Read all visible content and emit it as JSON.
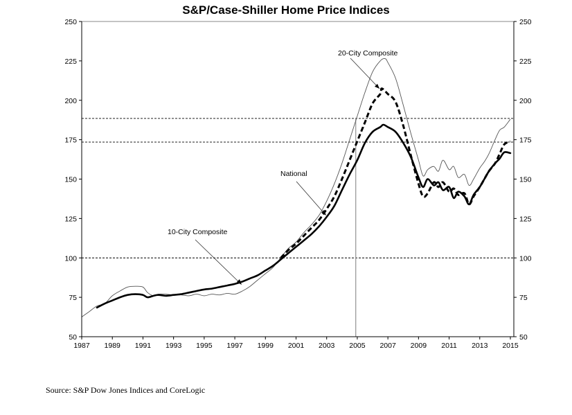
{
  "chart_data": {
    "type": "line",
    "title": "S&P/Case-Shiller Home Price Indices",
    "xlabel": "",
    "ylabel": "",
    "xlim": [
      1987,
      2015.3
    ],
    "ylim": [
      50,
      250
    ],
    "x_ticks": [
      1987,
      1989,
      1991,
      1993,
      1995,
      1997,
      1999,
      2001,
      2003,
      2005,
      2007,
      2009,
      2011,
      2013,
      2015
    ],
    "y_ticks": [
      50,
      75,
      100,
      125,
      150,
      175,
      200,
      225,
      250
    ],
    "y_axis_right": true,
    "reference_lines": [
      {
        "type": "horizontal",
        "value": 100,
        "style": "dotted"
      },
      {
        "type": "horizontal",
        "value": 173.5,
        "style": "dotted"
      },
      {
        "type": "horizontal",
        "value": 188.5,
        "style": "dotted"
      },
      {
        "type": "vertical",
        "value": 2004.9,
        "from_value": 188.5,
        "style": "gray"
      }
    ],
    "annotations": [
      {
        "text": "20-City Composite",
        "points_to": "20-City Composite"
      },
      {
        "text": "National",
        "points_to": "National"
      },
      {
        "text": "10-City Composite",
        "points_to": "10-City Composite"
      }
    ],
    "series": [
      {
        "name": "10-City Composite",
        "style": "thin",
        "color": "#555555",
        "x": [
          1987.0,
          1987.5,
          1988.0,
          1988.5,
          1989.0,
          1989.5,
          1990.0,
          1990.5,
          1991.0,
          1991.3,
          1991.7,
          1992.0,
          1992.5,
          1993.0,
          1993.5,
          1994.0,
          1994.5,
          1995.0,
          1995.5,
          1996.0,
          1996.5,
          1997.0,
          1997.5,
          1998.0,
          1998.5,
          1999.0,
          1999.5,
          2000.0,
          2000.5,
          2001.0,
          2001.5,
          2002.0,
          2002.5,
          2003.0,
          2003.5,
          2004.0,
          2004.5,
          2005.0,
          2005.5,
          2006.0,
          2006.5,
          2006.8,
          2007.0,
          2007.5,
          2008.0,
          2008.5,
          2009.0,
          2009.3,
          2009.6,
          2010.0,
          2010.3,
          2010.6,
          2011.0,
          2011.3,
          2011.6,
          2012.0,
          2012.3,
          2012.6,
          2013.0,
          2013.3,
          2013.6,
          2014.0,
          2014.3,
          2014.6,
          2015.0
        ],
        "values": [
          62.5,
          66,
          69.5,
          71,
          76,
          79,
          81.5,
          82,
          81.5,
          78,
          76,
          77,
          77,
          76.5,
          76.5,
          76,
          77,
          76,
          77,
          76.5,
          77.5,
          77,
          79,
          82,
          86,
          90,
          94,
          100,
          106,
          110,
          116,
          121,
          127,
          136,
          147,
          160,
          175,
          190,
          205,
          218,
          225,
          226.5,
          224,
          214,
          197,
          179,
          162,
          152,
          156,
          158,
          155,
          162,
          156,
          158,
          151,
          153,
          146,
          150,
          157,
          161,
          166,
          175,
          181,
          183,
          188
        ]
      },
      {
        "name": "20-City Composite",
        "style": "dashed",
        "color": "#000000",
        "x": [
          2000.0,
          2000.5,
          2001.0,
          2001.5,
          2002.0,
          2002.5,
          2003.0,
          2003.5,
          2004.0,
          2004.5,
          2005.0,
          2005.5,
          2006.0,
          2006.5,
          2006.6,
          2007.0,
          2007.5,
          2008.0,
          2008.5,
          2009.0,
          2009.3,
          2009.6,
          2010.0,
          2010.3,
          2010.6,
          2011.0,
          2011.3,
          2011.6,
          2012.0,
          2012.3,
          2012.6,
          2013.0,
          2013.3,
          2013.6,
          2014.0,
          2014.3,
          2014.6,
          2015.0
        ],
        "values": [
          100,
          105,
          109,
          114,
          119,
          124,
          131,
          139,
          150,
          162,
          174,
          186,
          198,
          204,
          207.5,
          204,
          199,
          184,
          165,
          147,
          139,
          141,
          148,
          145,
          148,
          142,
          144,
          140,
          141,
          134,
          139,
          145,
          150,
          155,
          160,
          166,
          172,
          174
        ]
      },
      {
        "name": "National",
        "style": "thick",
        "color": "#000000",
        "x": [
          1988.0,
          1988.5,
          1989.0,
          1989.5,
          1990.0,
          1990.5,
          1991.0,
          1991.3,
          1991.7,
          1992.0,
          1992.5,
          1993.0,
          1993.5,
          1994.0,
          1994.5,
          1995.0,
          1995.5,
          1996.0,
          1996.5,
          1997.0,
          1997.5,
          1998.0,
          1998.5,
          1999.0,
          1999.5,
          2000.0,
          2000.5,
          2001.0,
          2001.5,
          2002.0,
          2002.5,
          2003.0,
          2003.5,
          2004.0,
          2004.5,
          2005.0,
          2005.5,
          2006.0,
          2006.5,
          2006.7,
          2007.0,
          2007.5,
          2008.0,
          2008.5,
          2009.0,
          2009.3,
          2009.6,
          2010.0,
          2010.3,
          2010.6,
          2011.0,
          2011.3,
          2011.6,
          2012.0,
          2012.3,
          2012.6,
          2013.0,
          2013.3,
          2013.6,
          2014.0,
          2014.3,
          2014.6,
          2015.0
        ],
        "values": [
          68.5,
          71,
          73,
          75,
          76.5,
          77,
          76.5,
          75,
          76,
          76.5,
          76,
          76.5,
          77,
          78,
          79,
          80,
          80.5,
          81.5,
          82.5,
          83.5,
          85,
          87,
          89,
          92,
          95,
          99,
          103,
          107,
          111,
          115,
          120,
          126,
          133,
          143,
          153,
          162,
          173,
          180,
          183,
          184.5,
          183,
          180,
          173,
          164,
          151,
          145,
          150,
          146,
          148,
          143,
          145,
          138,
          142,
          139,
          134,
          140,
          145,
          150,
          155,
          160,
          163,
          167,
          166.5
        ]
      }
    ]
  },
  "source": "Source: S&P Dow Jones Indices and CoreLogic"
}
